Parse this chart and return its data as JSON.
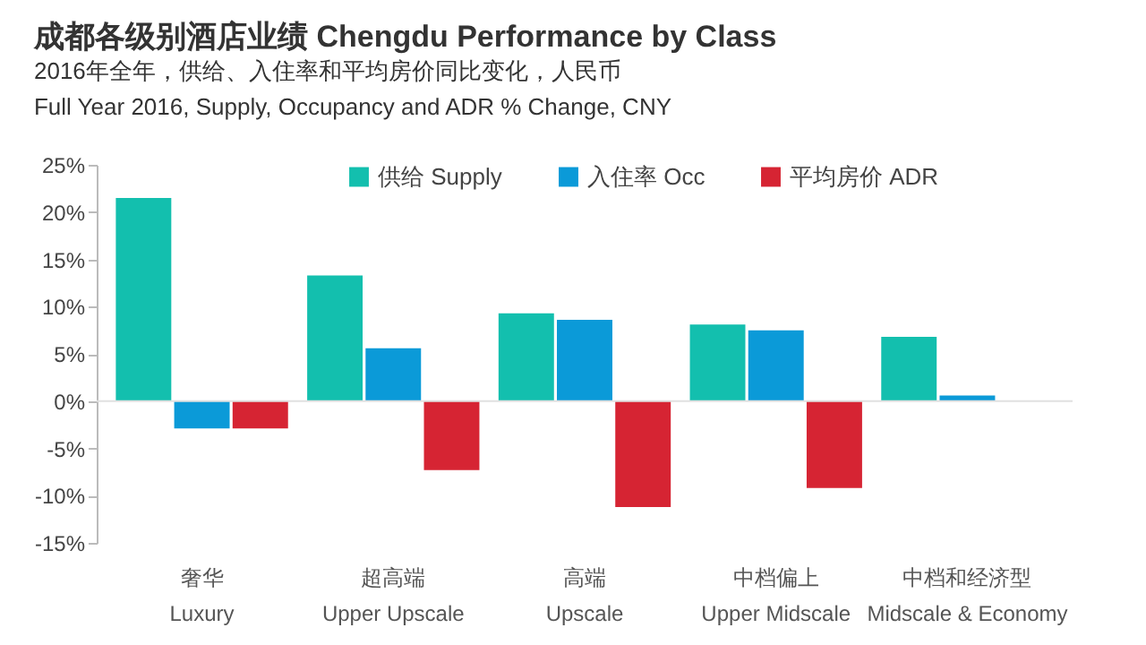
{
  "chart_data": {
    "type": "bar",
    "title": "成都各级别酒店业绩 Chengdu Performance by Class",
    "subtitle": "2016年全年，供给、入住率和平均房价同比变化，人民币\nFull Year 2016, Supply, Occupancy and ADR % Change, CNY",
    "categories": [
      "奢华\nLuxury",
      "超高端\nUpper Upscale",
      "高端\nUpscale",
      "中档偏上\nUpper Midscale",
      "中档和经济型\nMidscale & Economy"
    ],
    "series": [
      {
        "name": "供给 Supply",
        "color": "#13bfae",
        "values": [
          21.5,
          13.3,
          9.3,
          8.1,
          6.8
        ]
      },
      {
        "name": "入住率 Occ",
        "color": "#0b9ad8",
        "values": [
          -2.9,
          5.6,
          8.6,
          7.5,
          0.6
        ]
      },
      {
        "name": "平均房价 ADR",
        "color": "#d62433",
        "values": [
          -2.9,
          -7.3,
          -11.2,
          -9.2,
          null
        ]
      }
    ],
    "ylim": [
      -15,
      25
    ],
    "yticks": [
      {
        "value": -15,
        "label": "-15%"
      },
      {
        "value": -10,
        "label": "-10%"
      },
      {
        "value": -5,
        "label": "-5%"
      },
      {
        "value": 0,
        "label": "0%"
      },
      {
        "value": 5,
        "label": "5%"
      },
      {
        "value": 10,
        "label": "10%"
      },
      {
        "value": 15,
        "label": "15%"
      },
      {
        "value": 20,
        "label": "20%"
      },
      {
        "value": 25,
        "label": "25%"
      }
    ],
    "ref_lines": [
      {
        "axis": "y",
        "value": 0,
        "color": "#e0e0e0"
      }
    ],
    "grid": false,
    "legend": "top"
  }
}
